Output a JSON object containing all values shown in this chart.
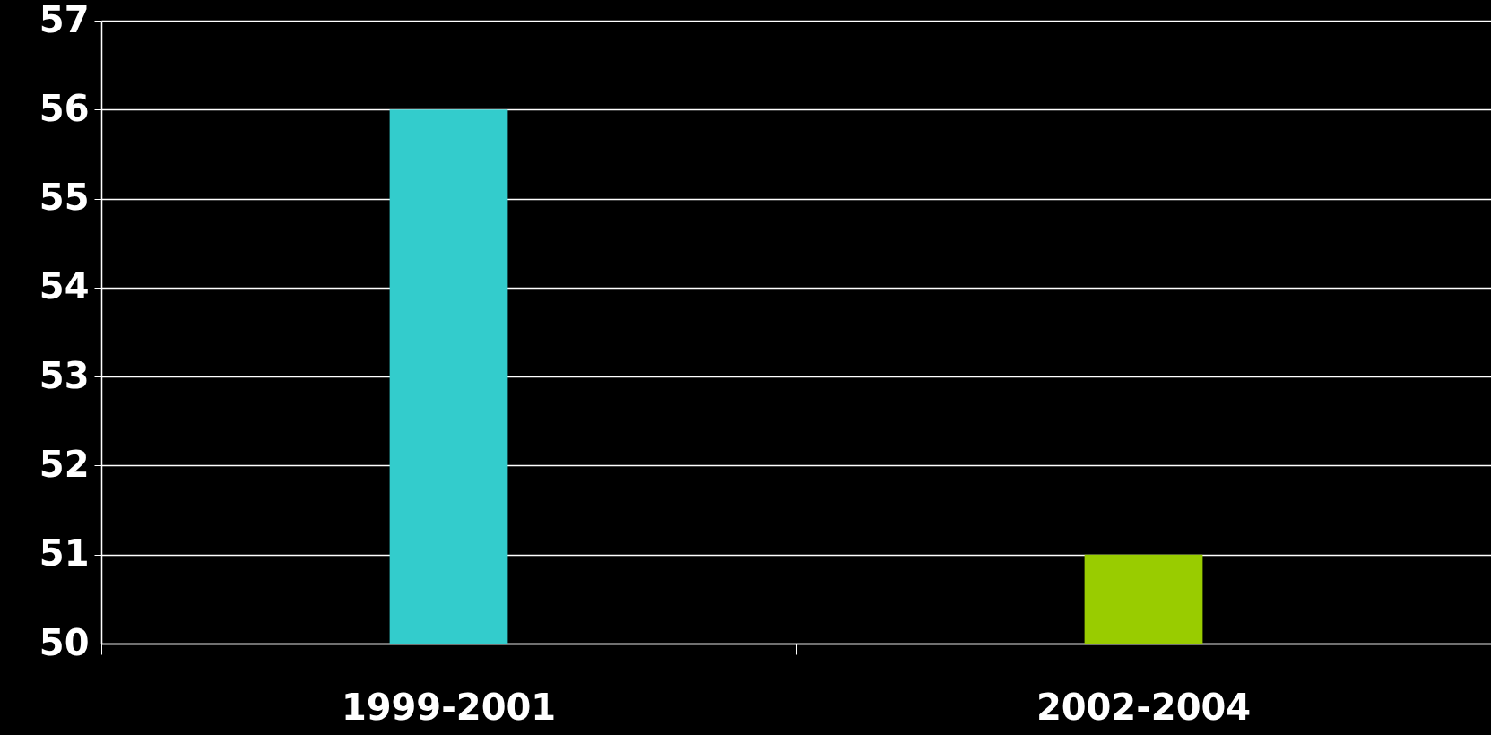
{
  "chart_data": {
    "type": "bar",
    "categories": [
      "1999-2001",
      "2002-2004"
    ],
    "values": [
      56,
      51
    ],
    "colors": [
      "#33cccc",
      "#99cc00"
    ],
    "ylim": [
      50,
      57
    ],
    "yticks": [
      50,
      51,
      52,
      53,
      54,
      55,
      56,
      57
    ],
    "grid": "y"
  }
}
